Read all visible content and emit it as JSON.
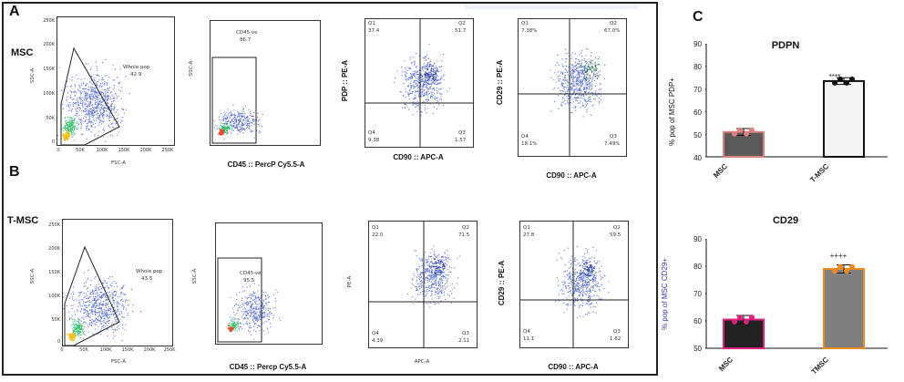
{
  "panels": {
    "A": "A",
    "B": "B",
    "C": "C"
  },
  "rows": [
    {
      "label": "MSC",
      "plots": [
        {
          "xlabel": "FSC-A",
          "ylabel": "SSC-A",
          "gate_name": "Whole pop",
          "gate_value": "42.9",
          "yticks": [
            "250K",
            "200K",
            "150K",
            "100K",
            "50K",
            "0"
          ],
          "xticks": [
            "0",
            "50K",
            "100K",
            "150K",
            "200K",
            "250K"
          ]
        },
        {
          "xlabel": "CD45 :: PercP Cy5.5-A",
          "ylabel": "SSC-A",
          "gate_name": "CD45-ve",
          "gate_value": "86.7"
        },
        {
          "xlabel": "CD90 :: APC-A",
          "ylabel": "PDP :: PE-A",
          "q1": "Q1",
          "q1v": "37.4",
          "q2": "Q2",
          "q2v": "51.7",
          "q3": "Q3",
          "q3v": "1.57",
          "q4": "Q4",
          "q4v": "9.38"
        },
        {
          "xlabel": "CD90 :: APC-A",
          "ylabel": "CD29 :: PE-A",
          "q1": "Q1",
          "q1v": "7.38%",
          "q2": "Q2",
          "q2v": "67.0%",
          "q3": "Q3",
          "q3v": "7.49%",
          "q4": "Q4",
          "q4v": "18.1%"
        }
      ]
    },
    {
      "label": "T-MSC",
      "plots": [
        {
          "xlabel": "FSC-A",
          "ylabel": "SSC-A",
          "gate_name": "Whole pop",
          "gate_value": "43.5",
          "yticks": [
            "250K",
            "200K",
            "150K",
            "100K",
            "50K",
            "0"
          ],
          "xticks": [
            "0",
            "50K",
            "100K",
            "150K",
            "200K",
            "250K"
          ]
        },
        {
          "xlabel": "CD45 :: Percp Cy5.5-A",
          "ylabel": "SSC-A",
          "gate_name": "CD45-ve",
          "gate_value": "95.5"
        },
        {
          "xlabel": "APC-A",
          "ylabel": "PE-A",
          "q1": "Q1",
          "q1v": "22.0",
          "q2": "Q2",
          "q2v": "71.5",
          "q3": "Q3",
          "q3v": "2.11",
          "q4": "Q4",
          "q4v": "4.39"
        },
        {
          "xlabel": "CD90 :: APC-A",
          "ylabel": "CD29 :: PE-A",
          "q1": "Q1",
          "q1v": "27.8",
          "q2": "Q2",
          "q2v": "59.5",
          "q3": "Q3",
          "q3v": "1.62",
          "q4": "Q4",
          "q4v": "11.1"
        }
      ]
    }
  ],
  "chart_data": [
    {
      "type": "bar",
      "title": "PDPN",
      "ylabel": "% pop of MSC PDP+",
      "categories": [
        "MSC",
        "T-MSC"
      ],
      "values": [
        51,
        73.5
      ],
      "ylim": [
        40,
        90
      ],
      "yticks": [
        "90",
        "80",
        "70",
        "60",
        "50",
        "40"
      ],
      "significance": "****",
      "colors": {
        "MSC_fill": "#5a5a5a",
        "MSC_edge": "#e08080",
        "TMSC_fill": "#f4f4f4",
        "TMSC_edge": "#111111"
      }
    },
    {
      "type": "bar",
      "title": "CD29",
      "ylabel": "% pop of MSC CD29+",
      "categories": [
        "MSC",
        "TMSC"
      ],
      "values": [
        60.5,
        79
      ],
      "ylim": [
        50,
        90
      ],
      "yticks": [
        "90",
        "80",
        "70",
        "60",
        "50"
      ],
      "significance": "++++",
      "colors": {
        "MSC_fill": "#222222",
        "MSC_edge": "#e0207a",
        "TMSC_fill": "#7f7f7f",
        "TMSC_edge": "#f08a1c"
      }
    }
  ]
}
